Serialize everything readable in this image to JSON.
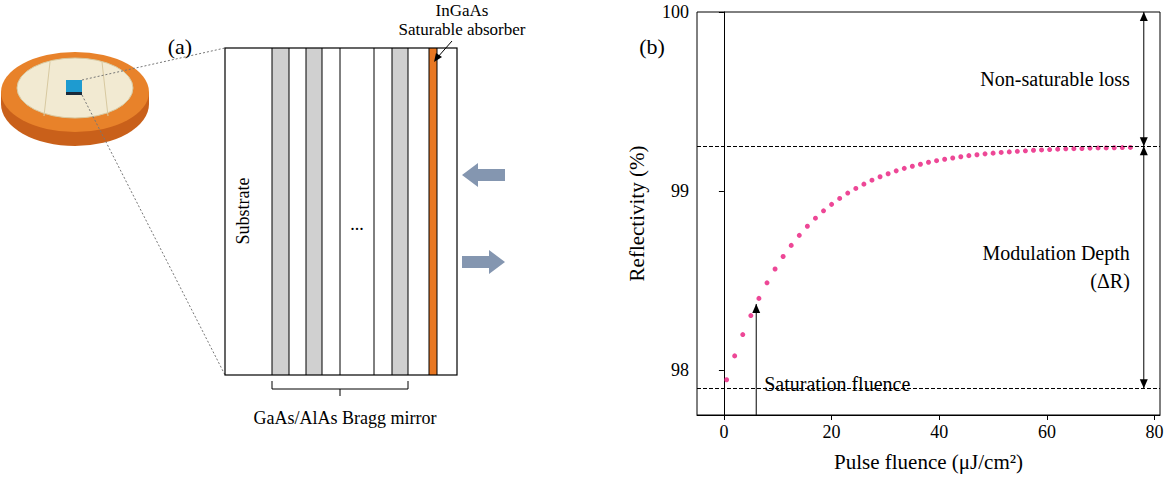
{
  "diagram": {
    "panel_label": "(a)",
    "absorber_label": [
      "InGaAs",
      "Saturable absorber"
    ],
    "substrate_label": "Substrate",
    "ellipsis": "...",
    "mirror_label": "GaAs/AlAs Bragg mirror"
  },
  "chart_data": {
    "panel_label": "(b)",
    "type": "scatter",
    "color": "#e8197c",
    "marker": "circle",
    "xlabel": "Pulse fluence (μJ/cm²)",
    "ylabel": "Reflectivity (%)",
    "x": [
      0.5,
      2,
      3.5,
      5,
      6.5,
      8,
      9.5,
      11,
      12.5,
      14,
      15.5,
      17,
      18.5,
      20,
      21.5,
      23,
      24.5,
      26,
      27.5,
      29,
      30.5,
      32,
      33.5,
      35,
      36.5,
      38,
      39.5,
      41,
      42.5,
      44,
      45.5,
      47,
      48.5,
      50,
      51.5,
      53,
      54.5,
      56,
      57.5,
      59,
      60.5,
      62,
      63.5,
      65,
      66.5,
      68,
      69.5,
      71,
      72.5,
      74,
      75.5
    ],
    "values": [
      97.947,
      98.08,
      98.199,
      98.305,
      98.401,
      98.488,
      98.565,
      98.635,
      98.697,
      98.753,
      98.804,
      98.849,
      98.89,
      98.926,
      98.959,
      98.989,
      99.015,
      99.039,
      99.061,
      99.08,
      99.097,
      99.113,
      99.127,
      99.139,
      99.15,
      99.161,
      99.17,
      99.178,
      99.185,
      99.192,
      99.198,
      99.203,
      99.208,
      99.212,
      99.216,
      99.219,
      99.222,
      99.225,
      99.228,
      99.23,
      99.232,
      99.234,
      99.236,
      99.237,
      99.238,
      99.24,
      99.241,
      99.241,
      99.242,
      99.243,
      99.244
    ],
    "xlim": [
      -5,
      81
    ],
    "ylim": [
      97.75,
      100
    ],
    "xticks": [
      0,
      20,
      40,
      60,
      80
    ],
    "yticks": [
      98,
      99,
      100
    ],
    "grid": false,
    "reference_lines": [
      99.25,
      97.9
    ],
    "saturation_point": [
      6,
      98.37
    ],
    "annotations": {
      "non_saturable": "Non-saturable loss",
      "modulation": [
        "Modulation Depth",
        "(ΔR)"
      ],
      "saturation": "Saturation fluence"
    }
  }
}
